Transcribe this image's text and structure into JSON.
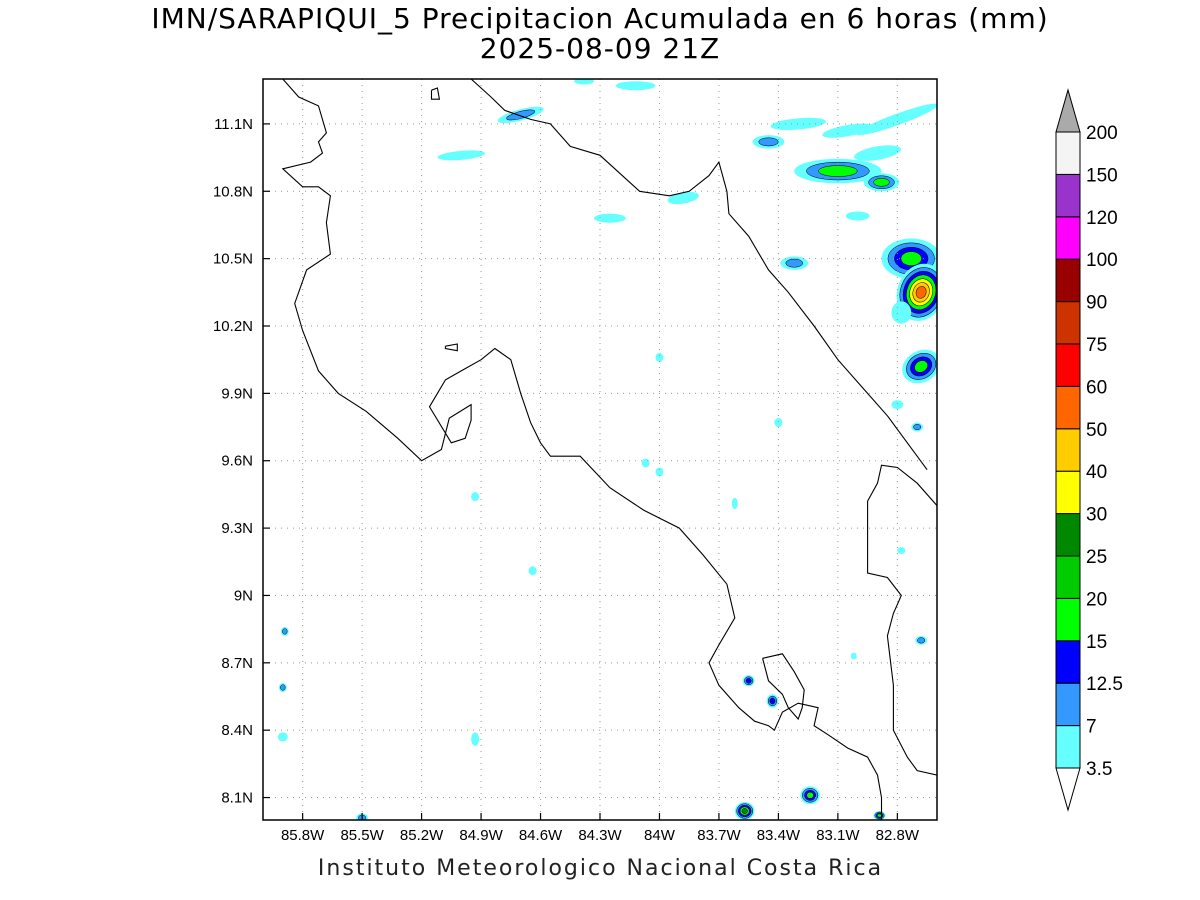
{
  "title": {
    "line1": "IMN/SARAPIQUI_5 Precipitacion Acumulada en 6 horas (mm)",
    "line2": "2025-08-09 21Z"
  },
  "footer": "Instituto Meteorologico Nacional Costa Rica",
  "map": {
    "lon_range": [
      -86.0,
      -82.6
    ],
    "lat_range": [
      8.0,
      11.3
    ],
    "lon_ticks": [
      {
        "value": -85.8,
        "label": "85.8W"
      },
      {
        "value": -85.5,
        "label": "85.5W"
      },
      {
        "value": -85.2,
        "label": "85.2W"
      },
      {
        "value": -84.9,
        "label": "84.9W"
      },
      {
        "value": -84.6,
        "label": "84.6W"
      },
      {
        "value": -84.3,
        "label": "84.3W"
      },
      {
        "value": -84.0,
        "label": "84W"
      },
      {
        "value": -83.7,
        "label": "83.7W"
      },
      {
        "value": -83.4,
        "label": "83.4W"
      },
      {
        "value": -83.1,
        "label": "83.1W"
      },
      {
        "value": -82.8,
        "label": "82.8W"
      }
    ],
    "lat_ticks": [
      {
        "value": 8.1,
        "label": "8.1N"
      },
      {
        "value": 8.4,
        "label": "8.4N"
      },
      {
        "value": 8.7,
        "label": "8.7N"
      },
      {
        "value": 9.0,
        "label": "9N"
      },
      {
        "value": 9.3,
        "label": "9.3N"
      },
      {
        "value": 9.6,
        "label": "9.6N"
      },
      {
        "value": 9.9,
        "label": "9.9N"
      },
      {
        "value": 10.2,
        "label": "10.2N"
      },
      {
        "value": 10.5,
        "label": "10.5N"
      },
      {
        "value": 10.8,
        "label": "10.8N"
      },
      {
        "value": 11.1,
        "label": "11.1N"
      }
    ],
    "grid": true,
    "colorbar": {
      "levels": [
        "3.5",
        "7",
        "12.5",
        "15",
        "20",
        "25",
        "30",
        "40",
        "50",
        "60",
        "75",
        "90",
        "100",
        "120",
        "150",
        "200"
      ],
      "colors": [
        "#66ffff",
        "#3399ff",
        "#0000ff",
        "#00ff00",
        "#00cc00",
        "#008800",
        "#ffff00",
        "#ffcc00",
        "#ff6600",
        "#ff0000",
        "#cc3300",
        "#990000",
        "#ff00ff",
        "#9933cc",
        "#f4f4f4",
        "#aaaaaa"
      ],
      "under_color": "#ffffff",
      "over_color": "#aaaaaa"
    },
    "coastline": [
      [
        [
          -85.9,
          11.3
        ],
        [
          -85.82,
          11.22
        ],
        [
          -85.72,
          11.18
        ],
        [
          -85.68,
          11.06
        ],
        [
          -85.72,
          11.02
        ],
        [
          -85.7,
          10.97
        ],
        [
          -85.76,
          10.93
        ],
        [
          -85.9,
          10.9
        ],
        [
          -85.8,
          10.82
        ],
        [
          -85.72,
          10.82
        ],
        [
          -85.66,
          10.78
        ],
        [
          -85.68,
          10.66
        ],
        [
          -85.66,
          10.52
        ],
        [
          -85.78,
          10.45
        ],
        [
          -85.84,
          10.3
        ],
        [
          -85.8,
          10.18
        ],
        [
          -85.72,
          10.0
        ],
        [
          -85.62,
          9.9
        ],
        [
          -85.48,
          9.82
        ],
        [
          -85.32,
          9.7
        ],
        [
          -85.2,
          9.6
        ],
        [
          -85.1,
          9.65
        ],
        [
          -85.06,
          9.79
        ],
        [
          -84.95,
          9.85
        ],
        [
          -84.95,
          9.78
        ],
        [
          -84.98,
          9.7
        ],
        [
          -85.05,
          9.68
        ],
        [
          -85.16,
          9.84
        ],
        [
          -85.08,
          9.96
        ],
        [
          -85.0,
          10.0
        ],
        [
          -84.9,
          10.05
        ],
        [
          -84.83,
          10.1
        ],
        [
          -84.75,
          10.05
        ],
        [
          -84.7,
          9.9
        ],
        [
          -84.65,
          9.77
        ],
        [
          -84.6,
          9.68
        ],
        [
          -84.55,
          9.62
        ],
        [
          -84.4,
          9.62
        ],
        [
          -84.25,
          9.48
        ],
        [
          -84.08,
          9.38
        ],
        [
          -83.9,
          9.3
        ],
        [
          -83.78,
          9.18
        ],
        [
          -83.66,
          9.05
        ],
        [
          -83.62,
          8.9
        ],
        [
          -83.7,
          8.78
        ],
        [
          -83.75,
          8.7
        ],
        [
          -83.7,
          8.6
        ],
        [
          -83.6,
          8.5
        ],
        [
          -83.52,
          8.44
        ],
        [
          -83.45,
          8.42
        ],
        [
          -83.42,
          8.4
        ],
        [
          -83.38,
          8.48
        ],
        [
          -83.3,
          8.52
        ],
        [
          -83.2,
          8.5
        ],
        [
          -83.22,
          8.42
        ],
        [
          -83.15,
          8.38
        ],
        [
          -83.05,
          8.32
        ],
        [
          -82.95,
          8.28
        ],
        [
          -82.9,
          8.2
        ],
        [
          -82.88,
          8.1
        ],
        [
          -82.88,
          8.0
        ]
      ],
      [
        [
          -84.95,
          11.3
        ],
        [
          -84.85,
          11.22
        ],
        [
          -84.78,
          11.16
        ],
        [
          -84.65,
          11.12
        ],
        [
          -84.55,
          11.1
        ],
        [
          -84.45,
          11.0
        ],
        [
          -84.3,
          10.96
        ],
        [
          -84.2,
          10.88
        ],
        [
          -84.1,
          10.8
        ],
        [
          -83.95,
          10.78
        ],
        [
          -83.85,
          10.8
        ],
        [
          -83.75,
          10.87
        ],
        [
          -83.7,
          10.93
        ],
        [
          -83.66,
          10.8
        ],
        [
          -83.65,
          10.7
        ],
        [
          -83.55,
          10.6
        ],
        [
          -83.45,
          10.45
        ],
        [
          -83.35,
          10.35
        ],
        [
          -83.22,
          10.2
        ],
        [
          -83.1,
          10.05
        ],
        [
          -82.95,
          9.9
        ],
        [
          -82.85,
          9.8
        ],
        [
          -82.75,
          9.68
        ],
        [
          -82.65,
          9.56
        ]
      ],
      [
        [
          -82.6,
          9.4
        ],
        [
          -82.7,
          9.5
        ],
        [
          -82.8,
          9.57
        ],
        [
          -82.88,
          9.58
        ],
        [
          -82.9,
          9.5
        ],
        [
          -82.95,
          9.42
        ],
        [
          -82.95,
          9.25
        ],
        [
          -82.95,
          9.1
        ],
        [
          -82.85,
          9.08
        ],
        [
          -82.78,
          9.0
        ],
        [
          -82.82,
          8.92
        ],
        [
          -82.85,
          8.82
        ],
        [
          -82.82,
          8.6
        ],
        [
          -82.82,
          8.4
        ],
        [
          -82.75,
          8.28
        ],
        [
          -82.7,
          8.22
        ],
        [
          -82.6,
          8.2
        ]
      ],
      [
        [
          -83.48,
          8.72
        ],
        [
          -83.38,
          8.74
        ],
        [
          -83.32,
          8.66
        ],
        [
          -83.27,
          8.58
        ],
        [
          -83.28,
          8.5
        ],
        [
          -83.3,
          8.45
        ],
        [
          -83.35,
          8.5
        ],
        [
          -83.38,
          8.56
        ],
        [
          -83.45,
          8.62
        ],
        [
          -83.48,
          8.72
        ]
      ],
      [
        [
          -85.08,
          10.11
        ],
        [
          -85.02,
          10.12
        ],
        [
          -85.02,
          10.09
        ],
        [
          -85.08,
          10.1
        ],
        [
          -85.08,
          10.11
        ]
      ],
      [
        [
          -85.15,
          11.25
        ],
        [
          -85.12,
          11.26
        ],
        [
          -85.11,
          11.21
        ],
        [
          -85.15,
          11.21
        ],
        [
          -85.15,
          11.25
        ]
      ]
    ],
    "precip_blobs": [
      {
        "lon": -83.3,
        "lat": 11.1,
        "rx": 0.14,
        "ry": 0.025,
        "rot": -5,
        "levels": [
          0
        ]
      },
      {
        "lon": -83.05,
        "lat": 11.07,
        "rx": 0.13,
        "ry": 0.025,
        "rot": -10,
        "levels": [
          0
        ]
      },
      {
        "lon": -82.8,
        "lat": 11.12,
        "rx": 0.22,
        "ry": 0.025,
        "rot": -20,
        "levels": [
          0
        ]
      },
      {
        "lon": -83.45,
        "lat": 11.02,
        "rx": 0.08,
        "ry": 0.03,
        "rot": 0,
        "levels": [
          0,
          1
        ]
      },
      {
        "lon": -83.1,
        "lat": 10.89,
        "rx": 0.22,
        "ry": 0.055,
        "rot": 0,
        "levels": [
          0,
          1,
          3
        ]
      },
      {
        "lon": -82.88,
        "lat": 10.84,
        "rx": 0.09,
        "ry": 0.04,
        "rot": 0,
        "levels": [
          0,
          1,
          3
        ]
      },
      {
        "lon": -82.9,
        "lat": 10.97,
        "rx": 0.12,
        "ry": 0.03,
        "rot": -10,
        "levels": [
          0
        ]
      },
      {
        "lon": -83.0,
        "lat": 10.69,
        "rx": 0.06,
        "ry": 0.02,
        "rot": 0,
        "levels": [
          0
        ]
      },
      {
        "lon": -83.32,
        "lat": 10.48,
        "rx": 0.07,
        "ry": 0.03,
        "rot": 0,
        "levels": [
          0,
          1
        ]
      },
      {
        "lon": -82.73,
        "lat": 10.5,
        "rx": 0.15,
        "ry": 0.09,
        "rot": 0,
        "levels": [
          0,
          1,
          2,
          3
        ]
      },
      {
        "lon": -82.68,
        "lat": 10.35,
        "rx": 0.12,
        "ry": 0.13,
        "rot": 20,
        "levels": [
          0,
          1,
          2,
          3,
          6,
          7,
          8
        ]
      },
      {
        "lon": -82.68,
        "lat": 10.02,
        "rx": 0.1,
        "ry": 0.07,
        "rot": -30,
        "levels": [
          0,
          1,
          2,
          3
        ]
      },
      {
        "lon": -82.78,
        "lat": 10.26,
        "rx": 0.05,
        "ry": 0.05,
        "rot": 0,
        "levels": [
          0
        ]
      },
      {
        "lon": -84.12,
        "lat": 11.27,
        "rx": 0.1,
        "ry": 0.02,
        "rot": 0,
        "levels": [
          0
        ]
      },
      {
        "lon": -84.38,
        "lat": 11.29,
        "rx": 0.05,
        "ry": 0.015,
        "rot": 0,
        "levels": [
          0
        ]
      },
      {
        "lon": -84.7,
        "lat": 11.14,
        "rx": 0.12,
        "ry": 0.025,
        "rot": -15,
        "levels": [
          0,
          1
        ]
      },
      {
        "lon": -85.0,
        "lat": 10.96,
        "rx": 0.12,
        "ry": 0.02,
        "rot": -5,
        "levels": [
          0
        ]
      },
      {
        "lon": -83.88,
        "lat": 10.77,
        "rx": 0.08,
        "ry": 0.025,
        "rot": -10,
        "levels": [
          0
        ]
      },
      {
        "lon": -84.25,
        "lat": 10.68,
        "rx": 0.08,
        "ry": 0.02,
        "rot": 0,
        "levels": [
          0
        ]
      },
      {
        "lon": -84.0,
        "lat": 10.06,
        "rx": 0.02,
        "ry": 0.02,
        "rot": 0,
        "levels": [
          0
        ]
      },
      {
        "lon": -83.4,
        "lat": 9.77,
        "rx": 0.02,
        "ry": 0.02,
        "rot": 0,
        "levels": [
          0
        ]
      },
      {
        "lon": -82.8,
        "lat": 9.85,
        "rx": 0.03,
        "ry": 0.02,
        "rot": 0,
        "levels": [
          0
        ]
      },
      {
        "lon": -82.7,
        "lat": 9.75,
        "rx": 0.03,
        "ry": 0.02,
        "rot": 0,
        "levels": [
          0,
          1
        ]
      },
      {
        "lon": -84.07,
        "lat": 9.59,
        "rx": 0.02,
        "ry": 0.02,
        "rot": 0,
        "levels": [
          0
        ]
      },
      {
        "lon": -84.0,
        "lat": 9.55,
        "rx": 0.02,
        "ry": 0.02,
        "rot": 0,
        "levels": [
          0
        ]
      },
      {
        "lon": -84.93,
        "lat": 9.44,
        "rx": 0.02,
        "ry": 0.02,
        "rot": 0,
        "levels": [
          0
        ]
      },
      {
        "lon": -83.62,
        "lat": 9.41,
        "rx": 0.015,
        "ry": 0.025,
        "rot": 0,
        "levels": [
          0
        ]
      },
      {
        "lon": -84.64,
        "lat": 9.11,
        "rx": 0.02,
        "ry": 0.02,
        "rot": 0,
        "levels": [
          0
        ]
      },
      {
        "lon": -82.78,
        "lat": 9.2,
        "rx": 0.02,
        "ry": 0.015,
        "rot": 0,
        "levels": [
          0
        ]
      },
      {
        "lon": -82.68,
        "lat": 8.8,
        "rx": 0.03,
        "ry": 0.02,
        "rot": 0,
        "levels": [
          0,
          1
        ]
      },
      {
        "lon": -83.02,
        "lat": 8.73,
        "rx": 0.015,
        "ry": 0.015,
        "rot": 0,
        "levels": [
          0
        ]
      },
      {
        "lon": -85.89,
        "lat": 8.84,
        "rx": 0.02,
        "ry": 0.02,
        "rot": 0,
        "levels": [
          0,
          1
        ]
      },
      {
        "lon": -85.9,
        "lat": 8.59,
        "rx": 0.02,
        "ry": 0.02,
        "rot": 0,
        "levels": [
          0,
          1
        ]
      },
      {
        "lon": -85.9,
        "lat": 8.37,
        "rx": 0.025,
        "ry": 0.02,
        "rot": 0,
        "levels": [
          0
        ]
      },
      {
        "lon": -84.93,
        "lat": 8.36,
        "rx": 0.02,
        "ry": 0.03,
        "rot": 0,
        "levels": [
          0
        ]
      },
      {
        "lon": -83.55,
        "lat": 8.62,
        "rx": 0.03,
        "ry": 0.025,
        "rot": 0,
        "levels": [
          0,
          1,
          2
        ]
      },
      {
        "lon": -83.43,
        "lat": 8.53,
        "rx": 0.03,
        "ry": 0.03,
        "rot": 0,
        "levels": [
          0,
          1,
          2
        ]
      },
      {
        "lon": -83.57,
        "lat": 8.04,
        "rx": 0.05,
        "ry": 0.04,
        "rot": 0,
        "levels": [
          0,
          1,
          2,
          3,
          5
        ]
      },
      {
        "lon": -83.24,
        "lat": 8.11,
        "rx": 0.05,
        "ry": 0.04,
        "rot": 0,
        "levels": [
          0,
          1,
          2,
          3
        ]
      },
      {
        "lon": -85.5,
        "lat": 8.01,
        "rx": 0.03,
        "ry": 0.02,
        "rot": 0,
        "levels": [
          0,
          1
        ]
      },
      {
        "lon": -82.89,
        "lat": 8.02,
        "rx": 0.03,
        "ry": 0.02,
        "rot": 0,
        "levels": [
          0,
          1,
          2,
          3
        ]
      }
    ]
  }
}
